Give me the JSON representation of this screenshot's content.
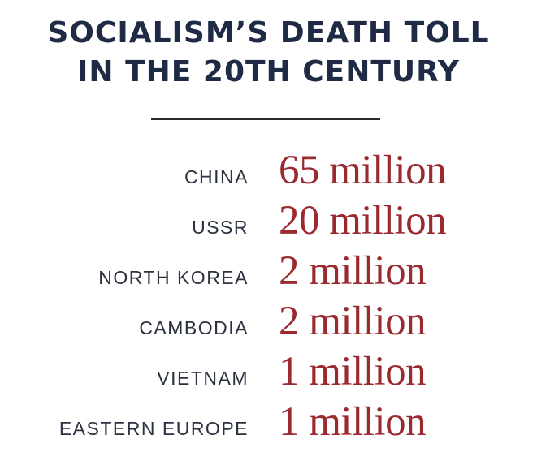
{
  "title": {
    "line1": "SOCIALISM’S DEATH TOLL",
    "line2": "IN THE 20TH CENTURY"
  },
  "rows": [
    {
      "country": "CHINA",
      "toll": "65 million"
    },
    {
      "country": "USSR",
      "toll": "20 million"
    },
    {
      "country": "NORTH KOREA",
      "toll": "2 million"
    },
    {
      "country": "CAMBODIA",
      "toll": "2 million"
    },
    {
      "country": "VIETNAM",
      "toll": "1 million"
    },
    {
      "country": "EASTERN EUROPE",
      "toll": "1 million"
    }
  ],
  "colors": {
    "title": "#1f2a44",
    "country": "#2b3140",
    "toll": "#9b2a30",
    "divider": "#2a2a2a"
  }
}
